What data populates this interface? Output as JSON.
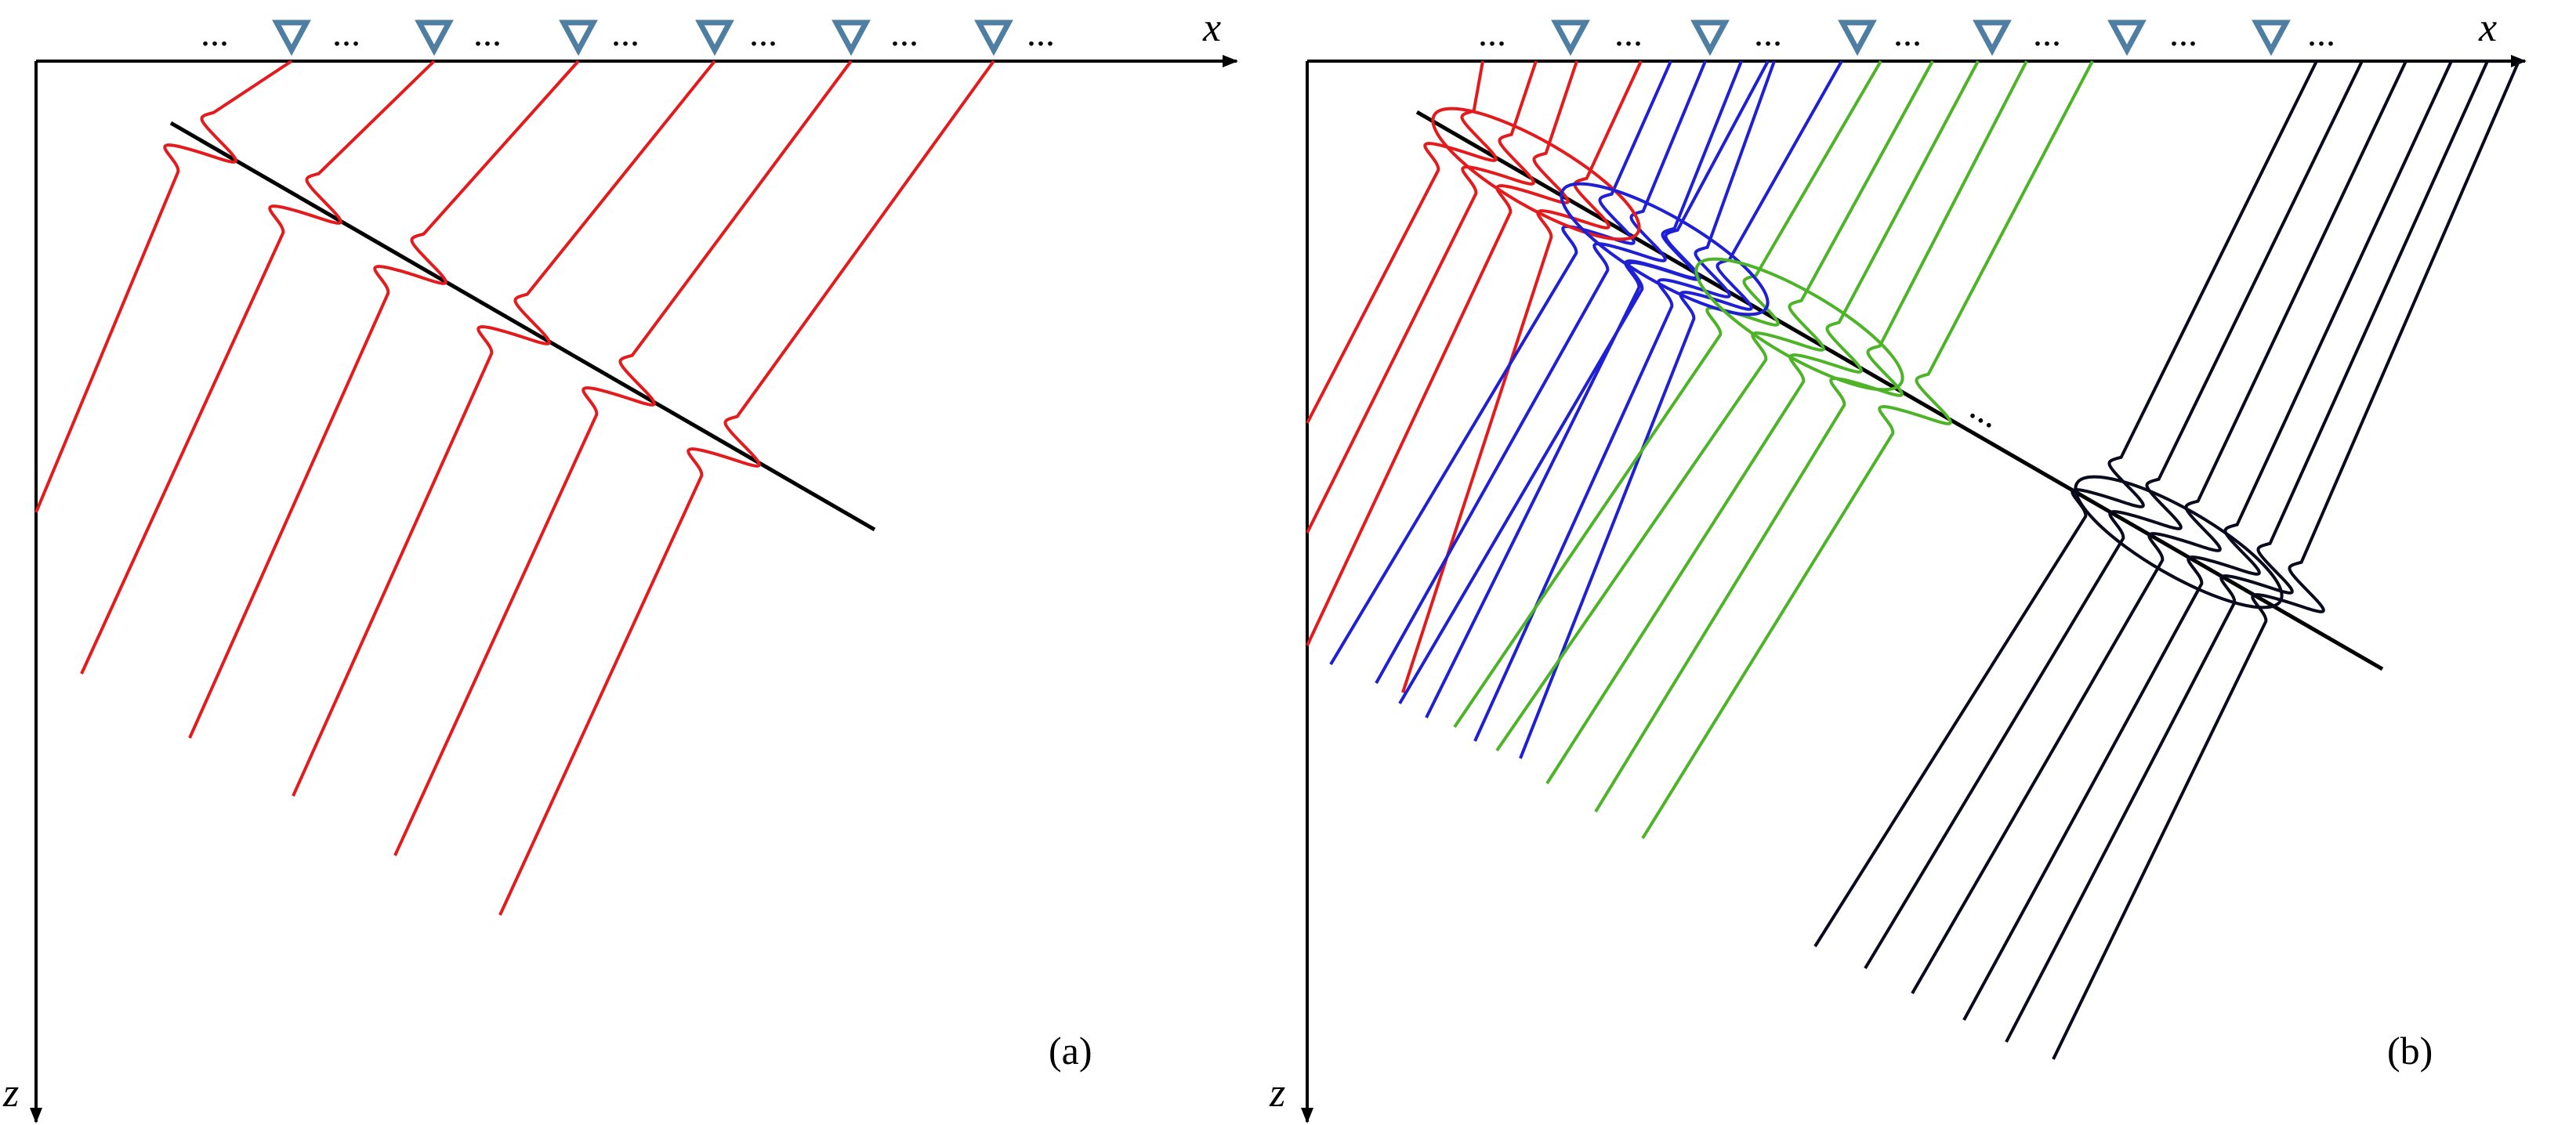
{
  "colors": {
    "red": "#e41a1c",
    "blue": "#1f1fd6",
    "green": "#4db327",
    "black": "#0a0a1e",
    "receiver_fill": "#ffffff",
    "receiver_stroke": "#4f7ea3",
    "axis": "#000000"
  },
  "icons": {
    "receiver": "inverted-triangle-icon"
  },
  "panels": [
    {
      "id": "a",
      "x_axis_label": "x",
      "z_axis_label": "z",
      "panel_label": "(a)",
      "dots_text": "..."
    },
    {
      "id": "b",
      "x_axis_label": "x",
      "z_axis_label": "z",
      "panel_label": "(b)",
      "dots_text": "..."
    }
  ]
}
